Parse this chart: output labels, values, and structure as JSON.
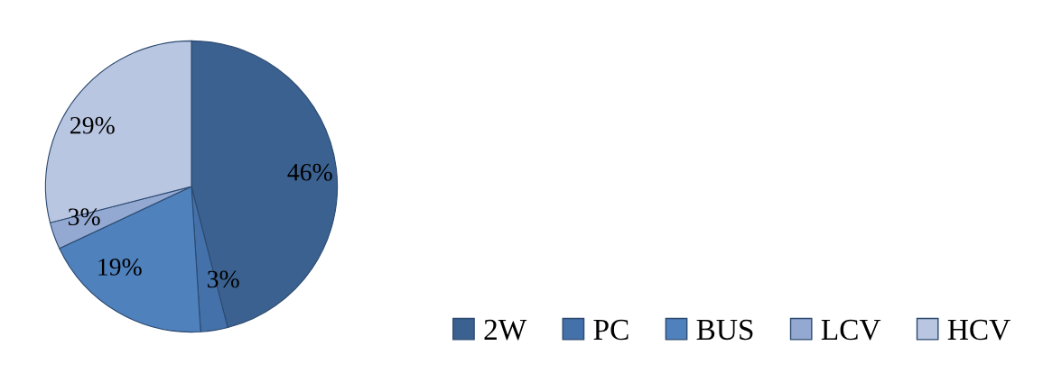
{
  "chart_data": {
    "type": "pie",
    "categories": [
      "2W",
      "PC",
      "BUS",
      "LCV",
      "HCV"
    ],
    "values": [
      46,
      3,
      19,
      3,
      29
    ],
    "colors": [
      "#3b6190",
      "#4471a9",
      "#4f81bd",
      "#93a9d2",
      "#b9c6e1"
    ],
    "value_labels": [
      "46%",
      "3%",
      "19%",
      "3%",
      "29%"
    ],
    "legend": "bottom right"
  }
}
